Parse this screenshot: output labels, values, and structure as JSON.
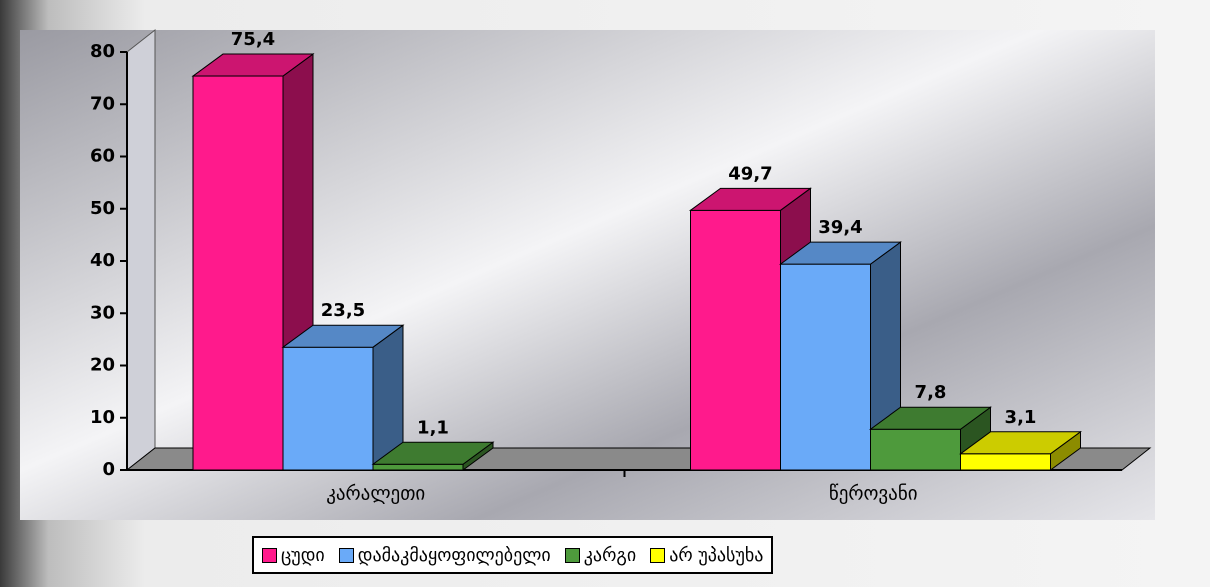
{
  "chart_data": {
    "type": "bar3d",
    "categories": [
      "კარალეთი",
      "წეროვანი"
    ],
    "series": [
      {
        "name": "ცუდი",
        "color": "#ff1a8c",
        "values": [
          75.4,
          49.7
        ],
        "value_labels": [
          "75,4",
          "49,7"
        ]
      },
      {
        "name": "დამაკმაყოფილებელი",
        "color": "#6aaaf8",
        "values": [
          23.5,
          39.4
        ],
        "value_labels": [
          "23,5",
          "39,4"
        ]
      },
      {
        "name": "კარგი",
        "color": "#4e9a3c",
        "values": [
          1.1,
          7.8
        ],
        "value_labels": [
          "1,1",
          "7,8"
        ]
      },
      {
        "name": "არ უპასუხა",
        "color": "#ffff00",
        "values": [
          null,
          3.1
        ],
        "value_labels": [
          null,
          "3,1"
        ]
      }
    ],
    "ylim": [
      0,
      80
    ],
    "yticks": [
      0,
      10,
      20,
      30,
      40,
      50,
      60,
      70,
      80
    ],
    "grid": false,
    "legend": "bottom"
  }
}
